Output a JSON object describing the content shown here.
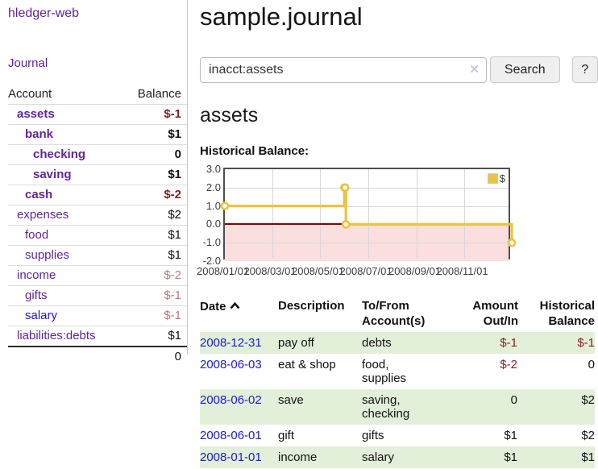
{
  "app": {
    "brand": "hledger-web",
    "nav_journal": "Journal"
  },
  "sidebar": {
    "header": {
      "account": "Account",
      "balance": "Balance"
    },
    "accounts": [
      {
        "name": "assets",
        "balance": "$-1",
        "indent": 0,
        "bold": true,
        "neg": "dark"
      },
      {
        "name": "bank",
        "balance": "$1",
        "indent": 1,
        "bold": true,
        "neg": "none"
      },
      {
        "name": "checking",
        "balance": "0",
        "indent": 2,
        "bold": true,
        "neg": "none"
      },
      {
        "name": "saving",
        "balance": "$1",
        "indent": 2,
        "bold": true,
        "neg": "none"
      },
      {
        "name": "cash",
        "balance": "$-2",
        "indent": 1,
        "bold": true,
        "neg": "dark"
      },
      {
        "name": "expenses",
        "balance": "$2",
        "indent": 0,
        "bold": false,
        "neg": "none"
      },
      {
        "name": "food",
        "balance": "$1",
        "indent": 1,
        "bold": false,
        "neg": "none"
      },
      {
        "name": "supplies",
        "balance": "$1",
        "indent": 1,
        "bold": false,
        "neg": "none"
      },
      {
        "name": "income",
        "balance": "$-2",
        "indent": 0,
        "bold": false,
        "neg": "light"
      },
      {
        "name": "gifts",
        "balance": "$-1",
        "indent": 1,
        "bold": false,
        "neg": "light"
      },
      {
        "name": "salary",
        "balance": "$-1",
        "indent": 1,
        "bold": false,
        "neg": "light",
        "blue": true
      },
      {
        "name": "liabilities:debts",
        "balance": "$1",
        "indent": 0,
        "bold": false,
        "neg": "none"
      }
    ],
    "total": "0"
  },
  "header": {
    "title": "sample.journal"
  },
  "search": {
    "value": "inacct:assets",
    "clear_icon": "✕",
    "button_label": "Search",
    "help_label": "?"
  },
  "account_page": {
    "heading": "assets",
    "chart_heading": "Historical Balance:"
  },
  "chart_data": {
    "type": "line",
    "title": "Historical Balance:",
    "steps": true,
    "x_range": [
      "2008-01-01",
      "2008-12-31"
    ],
    "ylim": [
      -2,
      3
    ],
    "y_ticks": [
      "3.0",
      "2.0",
      "1.0",
      "0.0",
      "-1.0",
      "-2.0"
    ],
    "x_ticks": [
      {
        "label": "2008/01/01",
        "date": "2008-01-01"
      },
      {
        "label": "2008/03/01",
        "date": "2008-03-01"
      },
      {
        "label": "2008/05/01",
        "date": "2008-05-01"
      },
      {
        "label": "2008/07/01",
        "date": "2008-07-01"
      },
      {
        "label": "2008/09/01",
        "date": "2008-09-01"
      },
      {
        "label": "2008/11/01",
        "date": "2008-11-01"
      }
    ],
    "series": [
      {
        "name": "$",
        "color": "#edc240",
        "points": [
          {
            "date": "2008-01-01",
            "value": 1
          },
          {
            "date": "2008-06-01",
            "value": 2
          },
          {
            "date": "2008-06-02",
            "value": 2
          },
          {
            "date": "2008-06-03",
            "value": 0
          },
          {
            "date": "2008-12-31",
            "value": -1
          }
        ]
      }
    ],
    "legend": {
      "position": "top-right",
      "label": "$"
    },
    "zero_line_color": "#8b0000",
    "negative_region_color": "#fbdede",
    "grid": true
  },
  "register": {
    "columns": {
      "date": "Date",
      "description": "Description",
      "accounts": "To/From Account(s)",
      "amount": "Amount Out/In",
      "balance": "Historical Balance"
    },
    "sort": {
      "column": "date",
      "direction": "asc"
    },
    "rows": [
      {
        "date": "2008-12-31",
        "description": "pay off",
        "accounts": "debts",
        "amount": "$-1",
        "amount_neg": true,
        "balance": "$-1",
        "balance_neg": true
      },
      {
        "date": "2008-06-03",
        "description": "eat & shop",
        "accounts": "food, supplies",
        "amount": "$-2",
        "amount_neg": true,
        "balance": "0",
        "balance_neg": false
      },
      {
        "date": "2008-06-02",
        "description": "save",
        "accounts": "saving, checking",
        "amount": "0",
        "amount_neg": false,
        "balance": "$2",
        "balance_neg": false
      },
      {
        "date": "2008-06-01",
        "description": "gift",
        "accounts": "gifts",
        "amount": "$1",
        "amount_neg": false,
        "balance": "$2",
        "balance_neg": false
      },
      {
        "date": "2008-01-01",
        "description": "income",
        "accounts": "salary",
        "amount": "$1",
        "amount_neg": false,
        "balance": "$1",
        "balance_neg": false
      }
    ]
  }
}
